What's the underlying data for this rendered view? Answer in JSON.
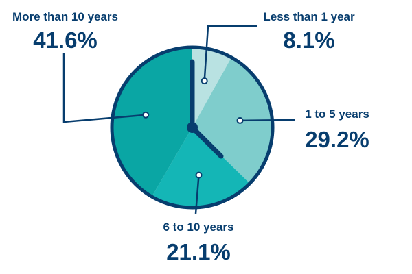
{
  "chart_data": {
    "type": "pie",
    "title": "",
    "unit": "%",
    "slices": [
      {
        "label": "Less than 1 year",
        "value": 8.1,
        "display": "8.1%",
        "color": "#b9e2e2"
      },
      {
        "label": "1 to 5 years",
        "value": 29.2,
        "display": "29.2%",
        "color": "#7fcdcc"
      },
      {
        "label": "6 to 10 years",
        "value": 21.1,
        "display": "21.1%",
        "color": "#14b6b6"
      },
      {
        "label": "More than 10 years",
        "value": 41.6,
        "display": "41.6%",
        "color": "#0aa6a4"
      }
    ]
  },
  "colors": {
    "outline": "#073d6e",
    "text": "#073d6e",
    "clock_hands": "#073d6e"
  },
  "icons": {
    "center": "clock-face-icon"
  }
}
